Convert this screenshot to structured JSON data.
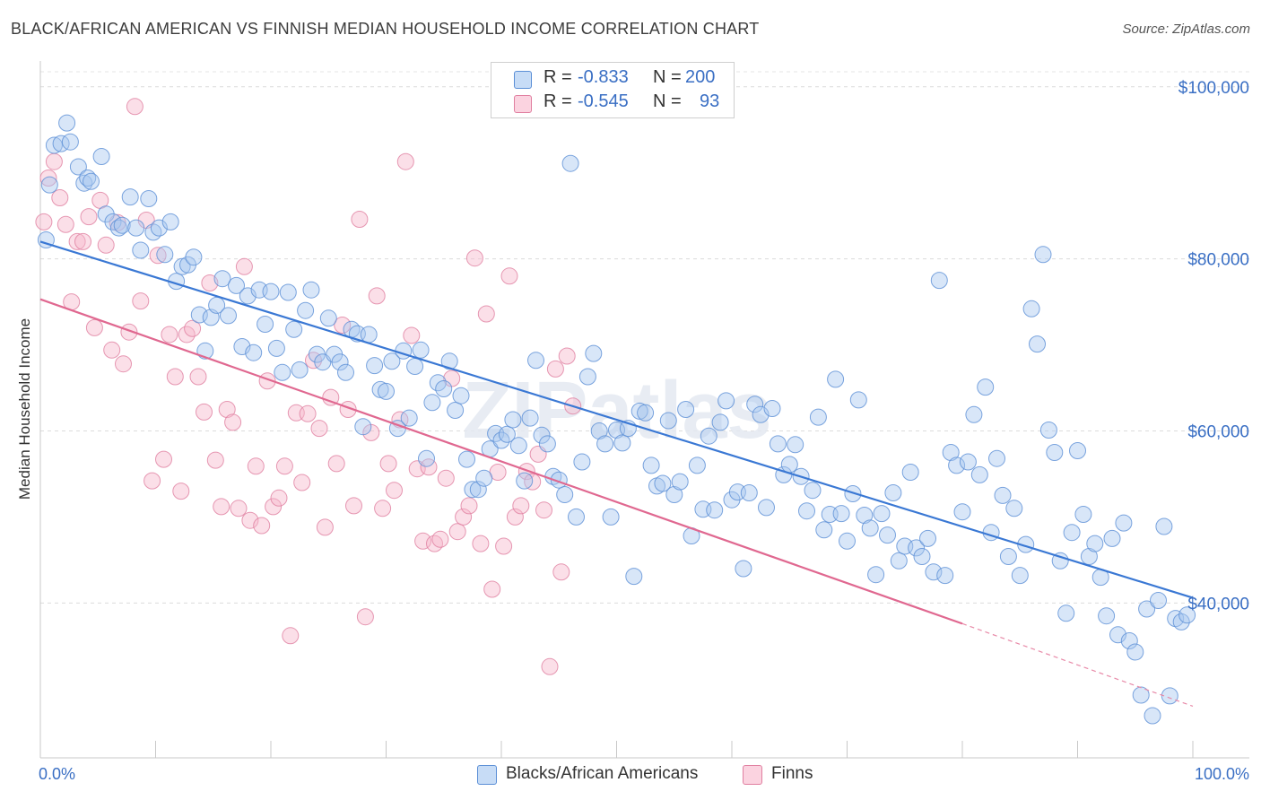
{
  "title": "BLACK/AFRICAN AMERICAN VS FINNISH MEDIAN HOUSEHOLD INCOME CORRELATION CHART",
  "source": "Source: ZipAtlas.com",
  "watermark": "ZIPatlas",
  "legend_top": [
    {
      "r_label": "R =",
      "r_value": "-0.833",
      "n_label": "N =",
      "n_value": "200",
      "color": "#a8c8f0"
    },
    {
      "r_label": "R =",
      "r_value": "-0.545",
      "n_label": "N =",
      "n_value": "93",
      "color": "#f7b8cc"
    }
  ],
  "legend_bottom": [
    {
      "label": "Blacks/African Americans",
      "color": "#a8c8f0"
    },
    {
      "label": "Finns",
      "color": "#f7b8cc"
    }
  ],
  "chart_data": {
    "type": "scatter",
    "title": "BLACK/AFRICAN AMERICAN VS FINNISH MEDIAN HOUSEHOLD INCOME CORRELATION CHART",
    "xlabel": "",
    "ylabel": "Median Household Income",
    "x_tick_labels": [
      "0.0%",
      "100.0%"
    ],
    "y_tick_labels": [
      "$40,000",
      "$60,000",
      "$80,000",
      "$100,000"
    ],
    "y_ticks": [
      40000,
      60000,
      80000,
      100000
    ],
    "xlim": [
      0,
      100
    ],
    "ylim": [
      22000,
      103000
    ],
    "grid": true,
    "series": [
      {
        "name": "Blacks/African Americans",
        "color": "#a8c8f0",
        "stroke": "#5b8fd6",
        "trend": {
          "x": [
            0,
            100
          ],
          "y": [
            82000,
            40600
          ]
        },
        "points": [
          [
            0.5,
            82.2
          ],
          [
            0.8,
            88.6
          ],
          [
            1.2,
            93.2
          ],
          [
            1.8,
            93.4
          ],
          [
            2.3,
            95.8
          ],
          [
            2.6,
            93.6
          ],
          [
            3.3,
            90.7
          ],
          [
            3.8,
            88.8
          ],
          [
            4.1,
            89.4
          ],
          [
            4.4,
            89.0
          ],
          [
            5.3,
            91.9
          ],
          [
            5.7,
            85.2
          ],
          [
            6.3,
            84.3
          ],
          [
            6.8,
            83.6
          ],
          [
            7.1,
            83.9
          ],
          [
            7.8,
            87.2
          ],
          [
            8.3,
            83.6
          ],
          [
            8.7,
            81.0
          ],
          [
            9.4,
            87.0
          ],
          [
            9.8,
            83.1
          ],
          [
            10.3,
            83.6
          ],
          [
            10.8,
            80.5
          ],
          [
            11.3,
            84.3
          ],
          [
            11.8,
            77.4
          ],
          [
            12.3,
            79.1
          ],
          [
            12.8,
            79.3
          ],
          [
            13.3,
            80.2
          ],
          [
            13.8,
            73.5
          ],
          [
            14.3,
            69.3
          ],
          [
            14.8,
            73.2
          ],
          [
            15.3,
            74.6
          ],
          [
            15.8,
            77.7
          ],
          [
            16.3,
            73.4
          ],
          [
            17.0,
            76.9
          ],
          [
            17.5,
            69.8
          ],
          [
            18.0,
            75.7
          ],
          [
            18.5,
            69.1
          ],
          [
            19.0,
            76.4
          ],
          [
            19.5,
            72.4
          ],
          [
            20.0,
            76.2
          ],
          [
            20.5,
            69.6
          ],
          [
            21.0,
            66.8
          ],
          [
            21.5,
            76.1
          ],
          [
            22.0,
            71.8
          ],
          [
            22.5,
            67.1
          ],
          [
            23.0,
            74.0
          ],
          [
            23.5,
            76.4
          ],
          [
            24.0,
            68.9
          ],
          [
            24.5,
            68.0
          ],
          [
            25.0,
            73.1
          ],
          [
            25.5,
            68.9
          ],
          [
            26.0,
            68.0
          ],
          [
            26.5,
            66.8
          ],
          [
            27.0,
            71.8
          ],
          [
            27.5,
            71.3
          ],
          [
            28.0,
            60.5
          ],
          [
            28.5,
            71.2
          ],
          [
            29.0,
            67.6
          ],
          [
            29.5,
            64.8
          ],
          [
            30.0,
            64.6
          ],
          [
            30.5,
            68.1
          ],
          [
            31.0,
            60.3
          ],
          [
            31.5,
            69.3
          ],
          [
            32.0,
            61.5
          ],
          [
            32.5,
            67.5
          ],
          [
            33.0,
            69.4
          ],
          [
            33.5,
            56.8
          ],
          [
            34.0,
            63.3
          ],
          [
            34.5,
            65.6
          ],
          [
            35.0,
            64.9
          ],
          [
            35.5,
            68.1
          ],
          [
            36.0,
            62.4
          ],
          [
            36.5,
            64.1
          ],
          [
            37.0,
            56.7
          ],
          [
            37.5,
            53.2
          ],
          [
            38.0,
            53.2
          ],
          [
            38.5,
            54.5
          ],
          [
            39.0,
            57.9
          ],
          [
            39.5,
            59.7
          ],
          [
            40.0,
            58.9
          ],
          [
            40.5,
            59.6
          ],
          [
            41.0,
            61.3
          ],
          [
            41.5,
            58.3
          ],
          [
            42.0,
            54.2
          ],
          [
            42.5,
            61.5
          ],
          [
            43.0,
            68.2
          ],
          [
            43.5,
            59.5
          ],
          [
            44.0,
            58.5
          ],
          [
            44.5,
            54.7
          ],
          [
            45.0,
            54.3
          ],
          [
            45.5,
            52.6
          ],
          [
            46.0,
            91.1
          ],
          [
            46.5,
            50.0
          ],
          [
            47.0,
            56.4
          ],
          [
            47.5,
            66.3
          ],
          [
            48.0,
            69.0
          ],
          [
            48.5,
            60.0
          ],
          [
            49.0,
            58.5
          ],
          [
            49.5,
            50.0
          ],
          [
            50.0,
            60.1
          ],
          [
            50.5,
            58.6
          ],
          [
            51.0,
            60.3
          ],
          [
            51.5,
            43.1
          ],
          [
            52.0,
            62.3
          ],
          [
            52.5,
            62.1
          ],
          [
            53.0,
            56.0
          ],
          [
            53.5,
            53.6
          ],
          [
            54.0,
            53.9
          ],
          [
            54.5,
            61.2
          ],
          [
            55.0,
            52.6
          ],
          [
            55.5,
            54.1
          ],
          [
            56.0,
            62.5
          ],
          [
            56.5,
            47.8
          ],
          [
            57.0,
            56.0
          ],
          [
            57.5,
            50.9
          ],
          [
            58.0,
            59.4
          ],
          [
            58.5,
            50.8
          ],
          [
            59.0,
            61.0
          ],
          [
            59.5,
            63.5
          ],
          [
            60.0,
            52.0
          ],
          [
            60.5,
            52.9
          ],
          [
            61.0,
            44.0
          ],
          [
            61.5,
            52.8
          ],
          [
            62.0,
            63.1
          ],
          [
            62.5,
            61.9
          ],
          [
            63.0,
            51.1
          ],
          [
            63.5,
            62.6
          ],
          [
            64.0,
            58.5
          ],
          [
            64.5,
            54.9
          ],
          [
            65.0,
            56.1
          ],
          [
            65.5,
            58.4
          ],
          [
            66.0,
            54.7
          ],
          [
            66.5,
            50.7
          ],
          [
            67.0,
            53.1
          ],
          [
            67.5,
            61.6
          ],
          [
            68.0,
            48.5
          ],
          [
            68.5,
            50.3
          ],
          [
            69.0,
            66.0
          ],
          [
            69.5,
            50.4
          ],
          [
            70.0,
            47.2
          ],
          [
            70.5,
            52.7
          ],
          [
            71.0,
            63.6
          ],
          [
            71.5,
            50.2
          ],
          [
            72.0,
            48.7
          ],
          [
            72.5,
            43.3
          ],
          [
            73.0,
            50.4
          ],
          [
            73.5,
            47.9
          ],
          [
            74.0,
            52.8
          ],
          [
            74.5,
            44.9
          ],
          [
            75.0,
            46.6
          ],
          [
            75.5,
            55.2
          ],
          [
            76.0,
            46.4
          ],
          [
            76.5,
            45.4
          ],
          [
            77.0,
            47.5
          ],
          [
            77.5,
            43.6
          ],
          [
            78.0,
            77.5
          ],
          [
            78.5,
            43.2
          ],
          [
            79.0,
            57.5
          ],
          [
            79.5,
            56.0
          ],
          [
            80.0,
            50.6
          ],
          [
            80.5,
            56.4
          ],
          [
            81.0,
            61.9
          ],
          [
            81.5,
            54.9
          ],
          [
            82.0,
            65.1
          ],
          [
            82.5,
            48.2
          ],
          [
            83.0,
            56.8
          ],
          [
            83.5,
            52.5
          ],
          [
            84.0,
            45.4
          ],
          [
            84.5,
            51.0
          ],
          [
            85.0,
            43.2
          ],
          [
            85.5,
            46.8
          ],
          [
            86.0,
            74.2
          ],
          [
            86.5,
            70.1
          ],
          [
            87.0,
            80.5
          ],
          [
            87.5,
            60.1
          ],
          [
            88.0,
            57.5
          ],
          [
            88.5,
            44.9
          ],
          [
            89.0,
            38.8
          ],
          [
            89.5,
            48.2
          ],
          [
            90.0,
            57.7
          ],
          [
            90.5,
            50.3
          ],
          [
            91.0,
            45.4
          ],
          [
            91.5,
            46.9
          ],
          [
            92.0,
            43.0
          ],
          [
            92.5,
            38.5
          ],
          [
            93.0,
            47.5
          ],
          [
            93.5,
            36.3
          ],
          [
            94.0,
            49.3
          ],
          [
            94.5,
            35.6
          ],
          [
            95.0,
            34.3
          ],
          [
            95.5,
            29.3
          ],
          [
            96.0,
            39.3
          ],
          [
            96.5,
            26.9
          ],
          [
            97.0,
            40.3
          ],
          [
            97.5,
            48.9
          ],
          [
            98.0,
            29.2
          ],
          [
            98.5,
            38.2
          ],
          [
            99.0,
            37.8
          ],
          [
            99.5,
            38.6
          ]
        ]
      },
      {
        "name": "Finns",
        "color": "#f7b8cc",
        "stroke": "#e07fa0",
        "trend": {
          "x": [
            0,
            80,
            100
          ],
          "y": [
            75300,
            37600,
            28000
          ]
        },
        "points": [
          [
            0.3,
            84.3
          ],
          [
            0.7,
            89.4
          ],
          [
            1.2,
            91.3
          ],
          [
            1.7,
            87.1
          ],
          [
            2.2,
            84.0
          ],
          [
            2.7,
            75.0
          ],
          [
            3.2,
            82.0
          ],
          [
            3.7,
            82.0
          ],
          [
            4.2,
            84.9
          ],
          [
            4.7,
            72.0
          ],
          [
            5.2,
            86.8
          ],
          [
            5.7,
            81.6
          ],
          [
            6.2,
            69.4
          ],
          [
            6.7,
            84.2
          ],
          [
            7.2,
            67.8
          ],
          [
            7.7,
            71.5
          ],
          [
            8.2,
            97.7
          ],
          [
            8.7,
            75.1
          ],
          [
            9.2,
            84.5
          ],
          [
            9.7,
            54.2
          ],
          [
            10.2,
            80.4
          ],
          [
            10.7,
            56.7
          ],
          [
            11.2,
            71.2
          ],
          [
            11.7,
            66.3
          ],
          [
            12.2,
            53.0
          ],
          [
            12.7,
            71.2
          ],
          [
            13.2,
            71.9
          ],
          [
            13.7,
            66.3
          ],
          [
            14.2,
            62.2
          ],
          [
            14.7,
            77.2
          ],
          [
            15.2,
            56.6
          ],
          [
            15.7,
            51.2
          ],
          [
            16.2,
            62.5
          ],
          [
            16.7,
            61.0
          ],
          [
            17.2,
            51.0
          ],
          [
            17.7,
            79.1
          ],
          [
            18.2,
            49.6
          ],
          [
            18.7,
            55.9
          ],
          [
            19.2,
            49.0
          ],
          [
            19.7,
            65.8
          ],
          [
            20.2,
            51.2
          ],
          [
            20.7,
            52.2
          ],
          [
            21.2,
            55.9
          ],
          [
            21.7,
            36.2
          ],
          [
            22.2,
            62.1
          ],
          [
            22.7,
            54.0
          ],
          [
            23.2,
            62.0
          ],
          [
            23.7,
            68.2
          ],
          [
            24.2,
            60.3
          ],
          [
            24.7,
            48.8
          ],
          [
            25.2,
            63.9
          ],
          [
            25.7,
            56.2
          ],
          [
            26.2,
            72.3
          ],
          [
            26.7,
            62.5
          ],
          [
            27.2,
            51.3
          ],
          [
            27.7,
            84.6
          ],
          [
            28.2,
            38.4
          ],
          [
            28.7,
            59.8
          ],
          [
            29.2,
            75.7
          ],
          [
            29.7,
            51.0
          ],
          [
            30.2,
            56.2
          ],
          [
            30.7,
            53.1
          ],
          [
            31.2,
            61.3
          ],
          [
            31.7,
            91.3
          ],
          [
            32.2,
            71.1
          ],
          [
            32.7,
            55.6
          ],
          [
            33.2,
            47.2
          ],
          [
            33.7,
            55.8
          ],
          [
            34.2,
            46.9
          ],
          [
            34.7,
            47.4
          ],
          [
            35.2,
            54.5
          ],
          [
            35.7,
            66.1
          ],
          [
            36.2,
            48.3
          ],
          [
            36.7,
            50.0
          ],
          [
            37.2,
            51.3
          ],
          [
            37.7,
            80.1
          ],
          [
            38.2,
            46.9
          ],
          [
            38.7,
            73.6
          ],
          [
            39.2,
            41.6
          ],
          [
            39.7,
            55.2
          ],
          [
            40.2,
            46.6
          ],
          [
            40.7,
            78.0
          ],
          [
            41.2,
            50.0
          ],
          [
            41.7,
            51.3
          ],
          [
            42.2,
            55.3
          ],
          [
            42.7,
            54.1
          ],
          [
            43.2,
            57.3
          ],
          [
            43.7,
            50.8
          ],
          [
            44.2,
            32.6
          ],
          [
            44.7,
            67.2
          ],
          [
            45.2,
            43.6
          ],
          [
            45.7,
            68.7
          ],
          [
            46.2,
            62.9
          ]
        ]
      }
    ]
  }
}
